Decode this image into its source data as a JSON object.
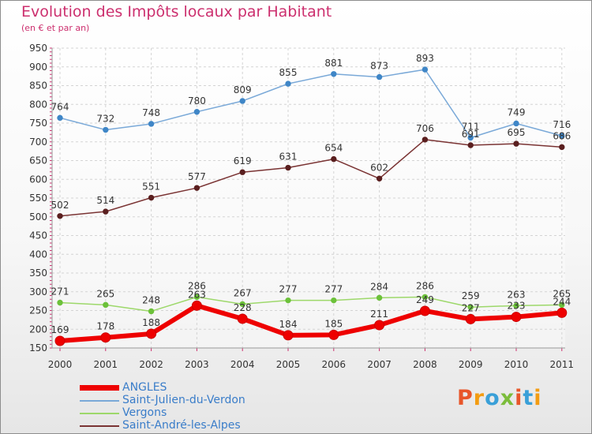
{
  "title": "Evolution des Impôts locaux par Habitant",
  "subtitle": "(en € et par an)",
  "logo_text": "Proxiti",
  "logo_colors": [
    "#e8562a",
    "#f39c12",
    "#3aa0d8",
    "#7cbd3b",
    "#e8562a",
    "#3aa0d8",
    "#f39c12"
  ],
  "chart_data": {
    "type": "line",
    "x": [
      "2000",
      "2001",
      "2002",
      "2003",
      "2004",
      "2005",
      "2006",
      "2007",
      "2008",
      "2009",
      "2010",
      "2011"
    ],
    "ylim": [
      150,
      950
    ],
    "yticks": [
      150,
      200,
      250,
      300,
      350,
      400,
      450,
      500,
      550,
      600,
      650,
      700,
      750,
      800,
      850,
      900,
      950
    ],
    "grid": true,
    "legend_position": "bottom-left",
    "series": [
      {
        "name": "ANGLES",
        "color": "#ee0000",
        "values": [
          169,
          178,
          188,
          263,
          228,
          184,
          185,
          211,
          249,
          227,
          233,
          244
        ]
      },
      {
        "name": "Saint-Julien-du-Verdon",
        "color": "#7aa9d8",
        "values": [
          764,
          732,
          748,
          780,
          809,
          855,
          881,
          873,
          893,
          711,
          749,
          716
        ]
      },
      {
        "name": "Vergons",
        "color": "#9dd86a",
        "values": [
          271,
          265,
          248,
          286,
          267,
          277,
          277,
          284,
          286,
          259,
          263,
          265
        ]
      },
      {
        "name": "Saint-André-les-Alpes",
        "color": "#7a3333",
        "values": [
          502,
          514,
          551,
          577,
          619,
          631,
          654,
          602,
          706,
          691,
          695,
          686
        ]
      }
    ]
  }
}
